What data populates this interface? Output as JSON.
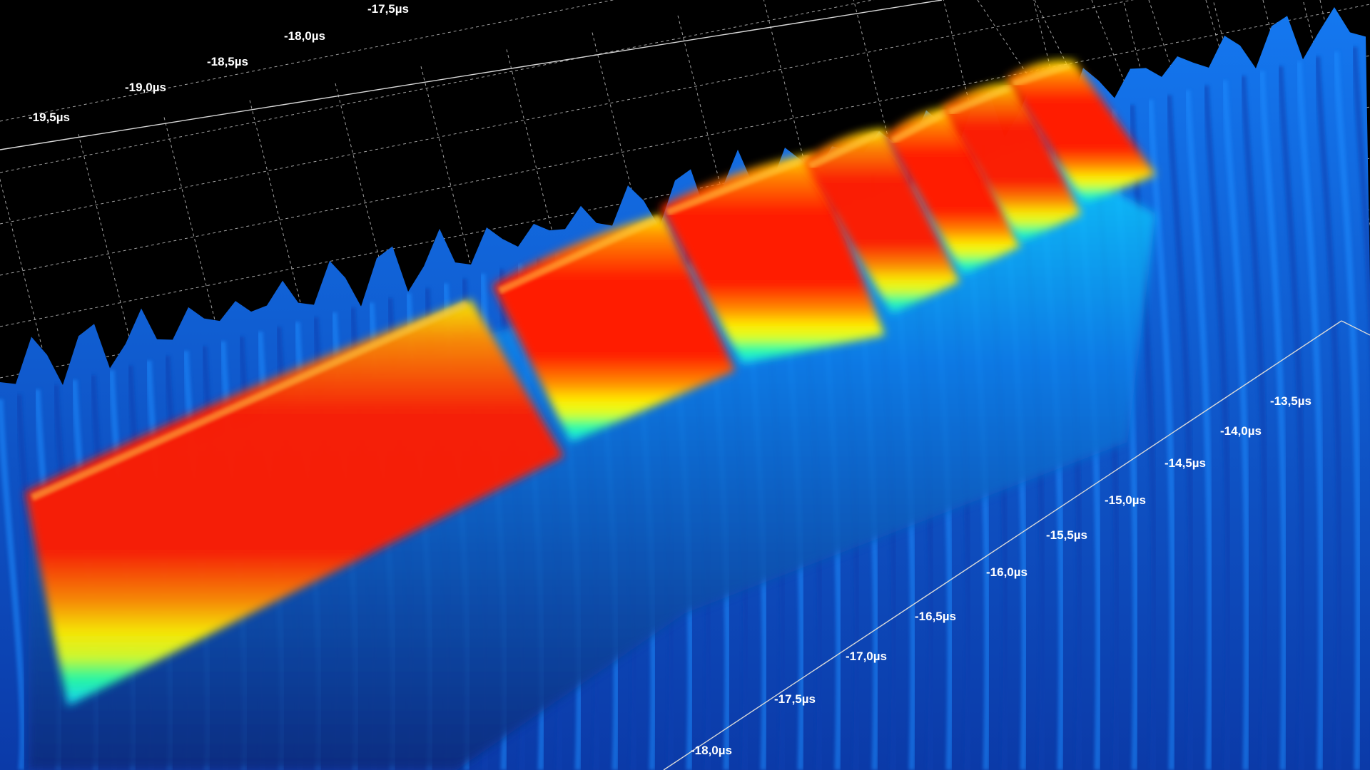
{
  "chart_data": {
    "type": "surface3d",
    "title": "",
    "colormap": [
      "#0a2a7a",
      "#0f5be0",
      "#1290ff",
      "#12d7ff",
      "#2bff9e",
      "#d6ff2a",
      "#ffee00",
      "#ff8a00",
      "#ff1e00"
    ],
    "colormap_stop_names": [
      "deep-blue",
      "blue",
      "light-blue",
      "cyan",
      "green",
      "yellow-green",
      "yellow",
      "orange",
      "red"
    ],
    "background_color": "#000000",
    "grid": true,
    "back_axis": {
      "name": "time-back",
      "ticks": [
        "-19,5µs",
        "-19,0µs",
        "-18,5µs",
        "-18,0µs",
        "-17,5µs"
      ]
    },
    "front_axis": {
      "name": "time-front",
      "ticks": [
        "-18,0µs",
        "-17,5µs",
        "-17,0µs",
        "-16,5µs",
        "-16,0µs",
        "-15,5µs",
        "-15,0µs",
        "-14,5µs",
        "-14,0µs",
        "-13,5µs"
      ]
    },
    "pulses": [
      {
        "level": 0.9
      },
      {
        "level": 1.0
      },
      {
        "level": 1.0
      },
      {
        "level": 0.95
      },
      {
        "level": 1.0
      },
      {
        "level": 0.95
      },
      {
        "level": 1.0
      }
    ]
  }
}
